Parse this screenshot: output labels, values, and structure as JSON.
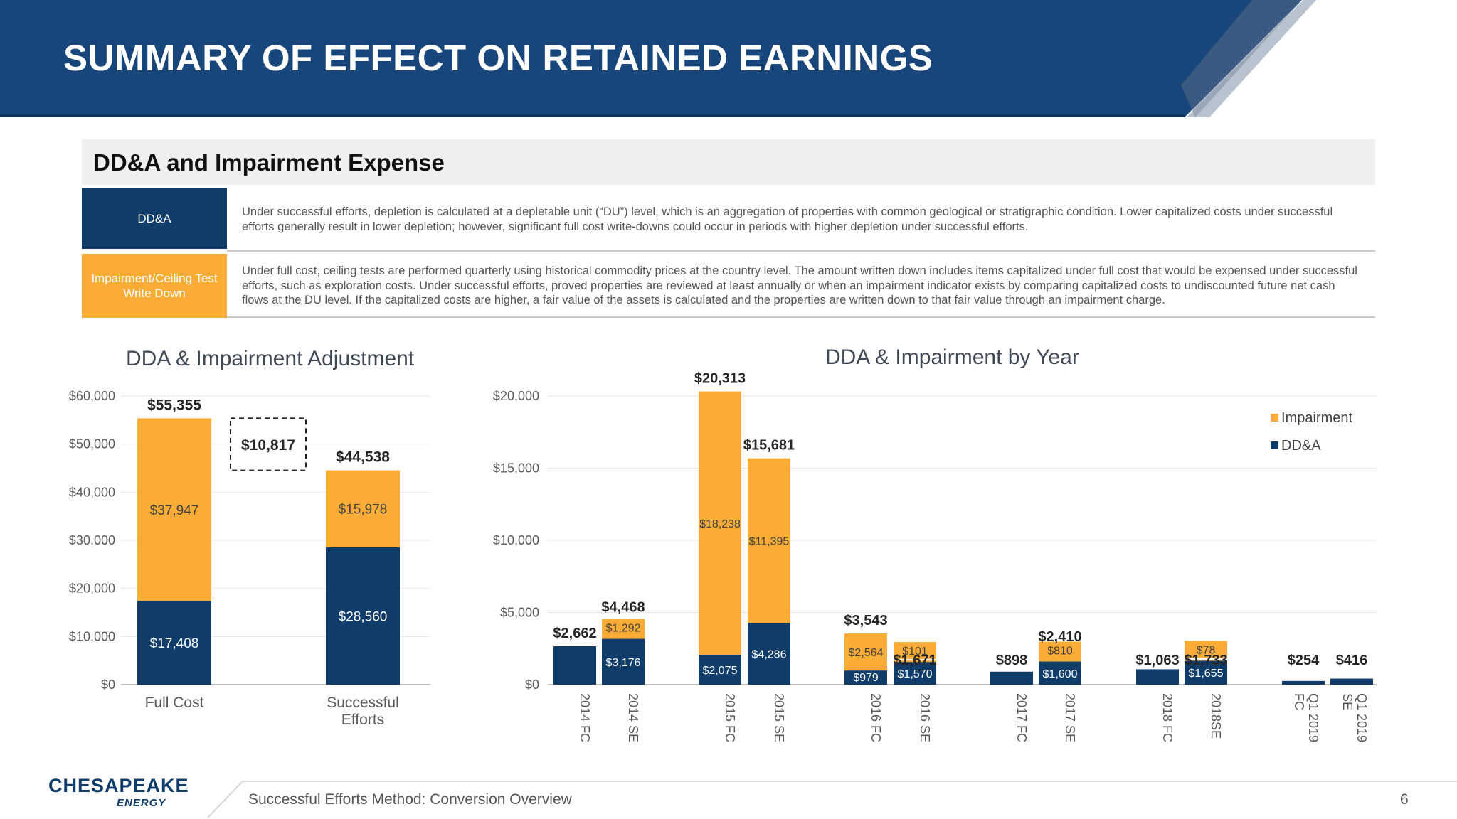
{
  "title": "SUMMARY OF EFFECT ON RETAINED EARNINGS",
  "section": {
    "heading": "DD&A and Impairment Expense",
    "rows": [
      {
        "label": "DD&A",
        "text": "Under successful efforts, depletion is calculated at a depletable unit (“DU”) level, which is an aggregation of properties with common geological or stratigraphic condition. Lower capitalized costs under successful efforts generally result in lower depletion; however, significant full cost write-downs could occur in periods with higher depletion under successful efforts."
      },
      {
        "label": "Impairment/Ceiling Test Write Down",
        "text": "Under full cost, ceiling tests are performed quarterly using historical commodity prices at the country level. The amount written down includes items capitalized under full cost that would be expensed under successful efforts, such as exploration costs. Under successful efforts, proved properties are reviewed at least annually or when an impairment indicator exists by comparing capitalized costs to undiscounted future net cash flows at the DU level. If the capitalized costs are higher, a fair value of the assets is calculated and the properties are written down to that fair value through an impairment charge."
      }
    ]
  },
  "colors": {
    "navy": "#0f3c68",
    "orange": "#f9ac36",
    "header_blue": "#1b4a82",
    "gray_text": "#595959"
  },
  "chart_data": [
    {
      "type": "bar",
      "stacked": true,
      "title": "DDA & Impairment Adjustment",
      "categories": [
        "Full Cost",
        "Successful Efforts"
      ],
      "series": [
        {
          "name": "DD&A",
          "values": [
            17408,
            28560
          ],
          "labels": [
            "$17,408",
            "$28,560"
          ]
        },
        {
          "name": "Impairment",
          "values": [
            37947,
            15978
          ],
          "labels": [
            "$37,947",
            "$15,978"
          ]
        }
      ],
      "totals": [
        "$55,355",
        "$44,538"
      ],
      "difference": {
        "value": 10817,
        "label": "$10,817"
      },
      "ylim": [
        0,
        60000
      ],
      "yticks": [
        0,
        10000,
        20000,
        30000,
        40000,
        50000,
        60000
      ],
      "ytick_labels": [
        "$0",
        "$10,000",
        "$20,000",
        "$30,000",
        "$40,000",
        "$50,000",
        "$60,000"
      ],
      "grid": true
    },
    {
      "type": "bar",
      "stacked": true,
      "title": "DDA & Impairment by Year",
      "categories": [
        "2014 FC",
        "2014 SE",
        "2015 FC",
        "2015 SE",
        "2016 FC",
        "2016 SE",
        "2017 FC",
        "2017 SE",
        "2018 FC",
        "2018SE",
        "Q1 2019 FC",
        "Q1 2019 SE"
      ],
      "series": [
        {
          "name": "DD&A",
          "values": [
            2662,
            3176,
            2075,
            4286,
            979,
            1570,
            898,
            1600,
            1063,
            1655,
            254,
            416
          ],
          "labels": [
            "",
            "$3,176",
            "$2,075",
            "$4,286",
            "$979",
            "$1,570",
            "",
            "$1,600",
            "",
            "$1,655",
            "",
            ""
          ]
        },
        {
          "name": "Impairment",
          "values": [
            0,
            1292,
            18238,
            11395,
            2564,
            101,
            0,
            810,
            0,
            78,
            0,
            0
          ],
          "labels": [
            "",
            "$1,292",
            "$18,238",
            "$11,395",
            "$2,564",
            "$101",
            "",
            "$810",
            "",
            "$78",
            "",
            ""
          ]
        }
      ],
      "totals": [
        "$2,662",
        "$4,468",
        "$20,313",
        "$15,681",
        "$3,543",
        "$1,671",
        "$898",
        "$2,410",
        "$1,063",
        "$1,733",
        "$254",
        "$416"
      ],
      "ylim": [
        0,
        20000
      ],
      "yticks": [
        0,
        5000,
        10000,
        15000,
        20000
      ],
      "ytick_labels": [
        "$0",
        "$5,000",
        "$10,000",
        "$15,000",
        "$20,000"
      ],
      "legend": {
        "position": "top-right",
        "entries": [
          "Impairment",
          "DD&A"
        ]
      },
      "grid": true
    }
  ],
  "footer": {
    "text": "Successful Efforts Method: Conversion Overview",
    "page": "6",
    "logo_main": "CHESAPEAKE",
    "logo_sub": "ENERGY"
  }
}
